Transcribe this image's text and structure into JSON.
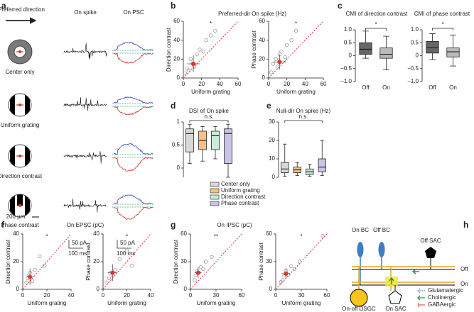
{
  "panel_labels": [
    "a",
    "b",
    "c",
    "d",
    "e",
    "f",
    "g",
    "h"
  ],
  "panel_a": {
    "stimulus_header": "Preferred direction",
    "spike_header": "On spike",
    "psc_header": "On PSC",
    "conditions": [
      "Center only",
      "Uniform grating",
      "Direction contrast",
      "Phase contrast"
    ],
    "space_scale": "200 µm",
    "spike_scale": [
      "50 pA",
      "100 ms"
    ],
    "psc_scale": [
      "50 pA",
      "100 ms"
    ]
  },
  "chart_data": [
    {
      "type": "scatter",
      "title": "Preferred-dir On spike (Hz)",
      "xlabel": "Uniform grating",
      "ylabel": "Direction contrast",
      "annotation": "*",
      "xlim": [
        0,
        60
      ],
      "xticks": [
        0,
        20,
        40,
        60
      ],
      "ylim": [
        0,
        60
      ],
      "yticks": [
        0,
        20,
        40,
        60
      ],
      "color": "#9a9a9a",
      "mean_color": "#e0312b",
      "x": [
        2,
        4,
        6,
        8,
        10,
        12,
        15,
        18,
        22,
        25,
        30,
        35
      ],
      "y": [
        5,
        10,
        8,
        20,
        15,
        12,
        25,
        30,
        28,
        40,
        45,
        50
      ],
      "mean": {
        "x": 11,
        "y": 15,
        "xerr": 7,
        "yerr": 9
      }
    },
    {
      "type": "scatter",
      "xlabel": "Uniform grating",
      "ylabel": "Phase contrast",
      "annotation": "*",
      "xlim": [
        0,
        60
      ],
      "xticks": [
        0,
        20,
        40,
        60
      ],
      "ylim": [
        0,
        60
      ],
      "yticks": [
        0,
        20,
        40,
        60
      ],
      "color": "#9a9a9a",
      "mean_color": "#e0312b",
      "x": [
        3,
        5,
        8,
        10,
        12,
        14,
        18,
        20,
        25,
        30
      ],
      "y": [
        6,
        15,
        20,
        12,
        25,
        28,
        22,
        35,
        40,
        50
      ],
      "mean": {
        "x": 12,
        "y": 17,
        "xerr": 7,
        "yerr": 8
      }
    },
    {
      "type": "box",
      "title": "CMI of direction contrast",
      "annotation": "*",
      "categories": [
        "Off",
        "On"
      ],
      "ylim": [
        -1,
        1
      ],
      "yticks": [
        {
          "value": -1,
          "label": "−1.0"
        },
        {
          "value": -0.5,
          "label": "−0.5"
        },
        0,
        0.5,
        {
          "value": 1,
          "label": "1.0"
        }
      ],
      "boxes": [
        {
          "min": -0.1,
          "q1": 0.05,
          "median": 0.25,
          "q3": 0.5,
          "max": 0.95,
          "color": "#666666"
        },
        {
          "min": -0.55,
          "q1": -0.1,
          "median": 0.05,
          "q3": 0.3,
          "max": 0.75,
          "color": "#bbbbbb"
        }
      ]
    },
    {
      "type": "box",
      "title": "CMI of phase contrast",
      "annotation": "*",
      "categories": [
        "Off",
        "On"
      ],
      "ylim": [
        -1,
        1
      ],
      "yticks": [
        {
          "value": -1,
          "label": "−1.0"
        },
        {
          "value": -0.5,
          "label": "−0.5"
        },
        0,
        0.5,
        {
          "value": 1,
          "label": "1.0"
        }
      ],
      "boxes": [
        {
          "min": -0.15,
          "q1": 0.1,
          "median": 0.3,
          "q3": 0.55,
          "max": 0.85,
          "color": "#666666"
        },
        {
          "min": -0.4,
          "q1": -0.05,
          "median": 0.15,
          "q3": 0.3,
          "max": 0.8,
          "color": "#bbbbbb"
        }
      ]
    },
    {
      "type": "box",
      "title": "DSI of On spike",
      "annotation": "n.s.",
      "legend": true,
      "categories": [
        "Center only",
        "Uniform grating",
        "Direction contrast",
        "Phase contrast"
      ],
      "ylim": [
        -0.2,
        1
      ],
      "yticks": [
        0,
        0.5,
        1
      ],
      "boxes": [
        {
          "min": 0.1,
          "q1": 0.35,
          "median": 0.75,
          "q3": 0.85,
          "max": 0.95,
          "color": "#d9d9d9"
        },
        {
          "min": 0.15,
          "q1": 0.4,
          "median": 0.6,
          "q3": 0.8,
          "max": 0.9,
          "color": "#f5c28a"
        },
        {
          "min": 0.2,
          "q1": 0.4,
          "median": 0.7,
          "q3": 0.8,
          "max": 0.9,
          "color": "#c7ecd8"
        },
        {
          "min": -0.2,
          "q1": 0.1,
          "median": 0.75,
          "q3": 0.85,
          "max": 0.95,
          "color": "#c9c3e6"
        }
      ]
    },
    {
      "type": "box",
      "title": "Null-dir On spike (Hz)",
      "annotation": "n.s.",
      "ylim": [
        0,
        30
      ],
      "yticks": [
        0,
        10,
        20,
        30
      ],
      "boxes": [
        {
          "min": 0.5,
          "q1": 2.5,
          "median": 4.5,
          "q3": 8,
          "max": 18,
          "color": "#d9d9d9"
        },
        {
          "min": 1,
          "q1": 2.5,
          "median": 4,
          "q3": 5.5,
          "max": 8,
          "color": "#f5c28a"
        },
        {
          "min": 0.5,
          "q1": 1.5,
          "median": 3,
          "q3": 4.5,
          "max": 7,
          "color": "#c7ecd8"
        },
        {
          "min": 1,
          "q1": 3,
          "median": 5.5,
          "q3": 10,
          "max": 20,
          "color": "#c9c3e6"
        }
      ]
    },
    {
      "type": "scatter",
      "title": "On EPSC (pC)",
      "xlabel": "Uniform grating",
      "ylabel": "Direction contrast",
      "annotation": "*",
      "xlim": [
        0,
        40
      ],
      "xticks": [
        0,
        20,
        40
      ],
      "ylim": [
        0,
        40
      ],
      "yticks": [
        0,
        20,
        40
      ],
      "color": "#9a9a9a",
      "mean_color": "#e0312b",
      "x": [
        3,
        4,
        5,
        6,
        8,
        10,
        14,
        18
      ],
      "y": [
        5,
        8,
        10,
        12,
        6,
        14,
        24,
        17
      ],
      "mean": {
        "x": 6,
        "y": 9,
        "xerr": 3,
        "yerr": 6
      }
    },
    {
      "type": "scatter",
      "xlabel": "Uniform grating",
      "ylabel": "Phase contrast",
      "annotation": "*",
      "xlim": [
        0,
        40
      ],
      "xticks": [
        0,
        20,
        40
      ],
      "ylim": [
        0,
        40
      ],
      "yticks": [
        0,
        20,
        40
      ],
      "color": "#9a9a9a",
      "mean_color": "#e0312b",
      "x": [
        3,
        5,
        6,
        8,
        10,
        14,
        20,
        24
      ],
      "y": [
        5,
        8,
        12,
        10,
        14,
        22,
        28,
        17
      ],
      "mean": {
        "x": 8,
        "y": 12,
        "xerr": 4,
        "yerr": 6
      }
    },
    {
      "type": "scatter",
      "title": "On IPSC (pC)",
      "xlabel": "Uniform grating",
      "ylabel": "Direction contrast",
      "annotation": "**",
      "xlim": [
        0,
        60
      ],
      "xticks": [
        0,
        30,
        60
      ],
      "ylim": [
        0,
        60
      ],
      "yticks": [
        0,
        30,
        60
      ],
      "color": "#9a9a9a",
      "mean_color": "#e0312b",
      "x": [
        5,
        6,
        8,
        10,
        12,
        15,
        18,
        25
      ],
      "y": [
        10,
        15,
        20,
        18,
        24,
        22,
        30,
        35
      ],
      "mean": {
        "x": 9,
        "y": 18,
        "xerr": 4,
        "yerr": 6
      }
    },
    {
      "type": "scatter",
      "xlabel": "Uniform grating",
      "ylabel": "Phase contrast",
      "annotation": "*",
      "xlim": [
        0,
        60
      ],
      "xticks": [
        0,
        30,
        60
      ],
      "ylim": [
        0,
        60
      ],
      "yticks": [
        0,
        30,
        60
      ],
      "color": "#9a9a9a",
      "mean_color": "#e0312b",
      "x": [
        6,
        8,
        10,
        12,
        15,
        18,
        22,
        28,
        55
      ],
      "y": [
        8,
        10,
        15,
        20,
        16,
        25,
        22,
        30,
        58
      ],
      "mean": {
        "x": 12,
        "y": 17,
        "xerr": 5,
        "yerr": 6
      }
    }
  ],
  "panel_h": {
    "cells": [
      "On BC",
      "Off BC",
      "Off SAC",
      "On-off DSGC",
      "On SAC"
    ],
    "layers": [
      "Off",
      "On"
    ],
    "legend": [
      "Glutamatergic",
      "Cholinergic",
      "GABAergic"
    ]
  }
}
